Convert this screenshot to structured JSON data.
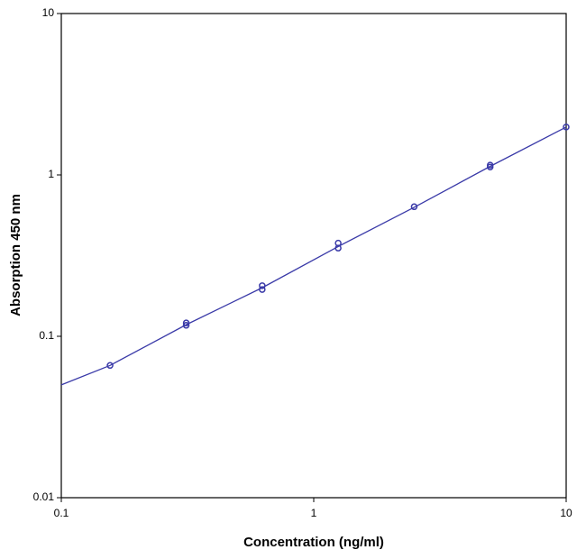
{
  "chart_data": {
    "type": "scatter",
    "x_label": "Concentration (ng/ml)",
    "y_label": "Absorption 450 nm",
    "xscale": "log",
    "yscale": "log",
    "xlim": [
      0.1,
      10
    ],
    "ylim": [
      0.01,
      10
    ],
    "xticks": [
      0.1,
      1,
      10
    ],
    "yticks": [
      0.01,
      0.1,
      1,
      10
    ],
    "series": [
      {
        "mode": "markers",
        "color": "#3a3aa8",
        "x": [
          0.156,
          0.3125,
          0.3125,
          0.625,
          0.625,
          1.25,
          1.25,
          2.5,
          5,
          5,
          10
        ],
        "values": [
          0.066,
          0.117,
          0.121,
          0.195,
          0.206,
          0.352,
          0.378,
          0.635,
          1.12,
          1.15,
          1.98
        ]
      },
      {
        "mode": "line",
        "color": "#3a3aa8",
        "x": [
          0.1,
          0.156,
          0.3125,
          0.625,
          1.25,
          2.5,
          5,
          10
        ],
        "values": [
          0.05,
          0.066,
          0.118,
          0.2,
          0.36,
          0.63,
          1.13,
          1.98
        ]
      }
    ]
  }
}
